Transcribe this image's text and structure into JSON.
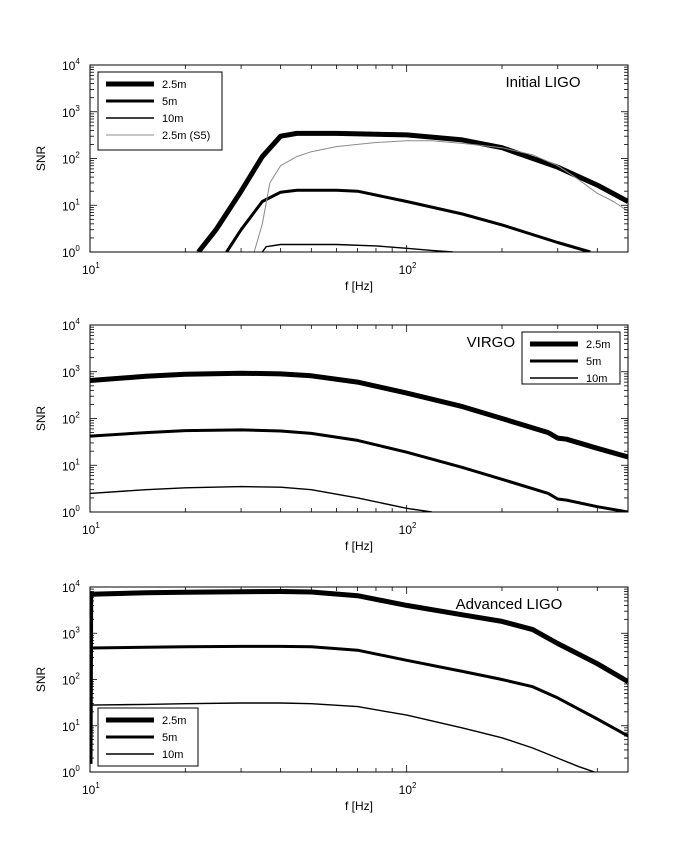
{
  "chart_data": [
    {
      "type": "line",
      "title": "Initial LIGO",
      "xlabel": "f [Hz]",
      "ylabel": "SNR",
      "xscale": "log",
      "yscale": "log",
      "xlim": [
        10,
        500
      ],
      "ylim": [
        1,
        10000
      ],
      "grid": false,
      "legend_position": "top-left",
      "x_ticks": [
        {
          "base": "10",
          "exp": "1"
        },
        {
          "base": "10",
          "exp": "2"
        }
      ],
      "y_ticks": [
        {
          "base": "10",
          "exp": "0"
        },
        {
          "base": "10",
          "exp": "1"
        },
        {
          "base": "10",
          "exp": "2"
        },
        {
          "base": "10",
          "exp": "3"
        },
        {
          "base": "10",
          "exp": "4"
        }
      ],
      "series": [
        {
          "name": "2.5m",
          "color": "#000000",
          "width": 5,
          "x": [
            22,
            25,
            30,
            35,
            40,
            45,
            60,
            100,
            150,
            200,
            300,
            400,
            500
          ],
          "y": [
            1,
            3,
            20,
            110,
            300,
            345,
            345,
            320,
            250,
            170,
            65,
            27,
            12
          ]
        },
        {
          "name": "5m",
          "color": "#000000",
          "width": 3,
          "x": [
            27,
            30,
            35,
            40,
            45,
            60,
            70,
            100,
            150,
            200,
            300,
            380
          ],
          "y": [
            1,
            3,
            12,
            19,
            21,
            21,
            20,
            12,
            6.5,
            3.8,
            1.6,
            1
          ]
        },
        {
          "name": "10m",
          "color": "#000000",
          "width": 1.4,
          "x": [
            35,
            36,
            40,
            60,
            80,
            100,
            120,
            140
          ],
          "y": [
            1,
            1.3,
            1.45,
            1.45,
            1.35,
            1.2,
            1.08,
            1
          ]
        },
        {
          "name": "2.5m (S5)",
          "color": "#8c8c8c",
          "width": 1,
          "x": [
            33,
            35,
            37,
            40,
            45,
            50,
            60,
            70,
            80,
            100,
            120,
            150,
            200,
            250,
            300,
            350,
            400,
            450,
            500
          ],
          "y": [
            1,
            4,
            30,
            70,
            110,
            140,
            180,
            200,
            220,
            240,
            240,
            210,
            170,
            120,
            70,
            35,
            18,
            12,
            7.5
          ]
        }
      ]
    },
    {
      "type": "line",
      "title": "VIRGO",
      "xlabel": "f [Hz]",
      "ylabel": "SNR",
      "xscale": "log",
      "yscale": "log",
      "xlim": [
        10,
        500
      ],
      "ylim": [
        1,
        10000
      ],
      "grid": false,
      "legend_position": "top-right",
      "x_ticks": [
        {
          "base": "10",
          "exp": "1"
        },
        {
          "base": "10",
          "exp": "2"
        }
      ],
      "y_ticks": [
        {
          "base": "10",
          "exp": "0"
        },
        {
          "base": "10",
          "exp": "1"
        },
        {
          "base": "10",
          "exp": "2"
        },
        {
          "base": "10",
          "exp": "3"
        },
        {
          "base": "10",
          "exp": "4"
        }
      ],
      "series": [
        {
          "name": "2.5m",
          "color": "#000000",
          "width": 5,
          "x": [
            10,
            15,
            20,
            30,
            40,
            50,
            70,
            100,
            150,
            200,
            280,
            300,
            320,
            400,
            500
          ],
          "y": [
            650,
            800,
            880,
            930,
            900,
            820,
            600,
            350,
            180,
            100,
            50,
            38,
            36,
            23,
            15
          ]
        },
        {
          "name": "5m",
          "color": "#000000",
          "width": 3,
          "x": [
            10,
            15,
            20,
            30,
            40,
            50,
            70,
            100,
            150,
            200,
            280,
            300,
            320,
            400,
            500
          ],
          "y": [
            42,
            50,
            55,
            57,
            54,
            48,
            34,
            19,
            9,
            5,
            2.5,
            1.9,
            1.8,
            1.3,
            1
          ]
        },
        {
          "name": "10m",
          "color": "#000000",
          "width": 1.4,
          "x": [
            10,
            15,
            20,
            30,
            40,
            50,
            70,
            100,
            120
          ],
          "y": [
            2.5,
            3,
            3.3,
            3.5,
            3.4,
            3,
            2,
            1.2,
            1
          ]
        }
      ]
    },
    {
      "type": "line",
      "title": "Advanced LIGO",
      "xlabel": "f [Hz]",
      "ylabel": "SNR",
      "xscale": "log",
      "yscale": "log",
      "xlim": [
        10,
        500
      ],
      "ylim": [
        1,
        10000
      ],
      "grid": false,
      "legend_position": "bottom-left",
      "x_ticks": [
        {
          "base": "10",
          "exp": "1"
        },
        {
          "base": "10",
          "exp": "2"
        }
      ],
      "y_ticks": [
        {
          "base": "10",
          "exp": "0"
        },
        {
          "base": "10",
          "exp": "1"
        },
        {
          "base": "10",
          "exp": "2"
        },
        {
          "base": "10",
          "exp": "3"
        },
        {
          "base": "10",
          "exp": "4"
        }
      ],
      "series": [
        {
          "name": "2.5m",
          "color": "#000000",
          "width": 5,
          "x": [
            10,
            10.05,
            15,
            20,
            30,
            40,
            50,
            70,
            100,
            150,
            200,
            250,
            300,
            400,
            500
          ],
          "y": [
            1.5,
            7000,
            7500,
            7700,
            7900,
            8000,
            7800,
            6500,
            4000,
            2500,
            1800,
            1200,
            600,
            220,
            90
          ]
        },
        {
          "name": "5m",
          "color": "#000000",
          "width": 3,
          "x": [
            10,
            15,
            20,
            30,
            40,
            50,
            70,
            100,
            150,
            200,
            250,
            300,
            400,
            500
          ],
          "y": [
            480,
            500,
            510,
            520,
            520,
            510,
            430,
            260,
            150,
            100,
            70,
            40,
            14,
            6
          ]
        },
        {
          "name": "10m",
          "color": "#000000",
          "width": 1.4,
          "x": [
            10,
            15,
            20,
            30,
            40,
            50,
            70,
            100,
            150,
            200,
            250,
            300,
            350,
            400
          ],
          "y": [
            28,
            29,
            30,
            31,
            31,
            30,
            26,
            17,
            9,
            5.5,
            3.3,
            2,
            1.3,
            0.95
          ]
        }
      ]
    }
  ]
}
